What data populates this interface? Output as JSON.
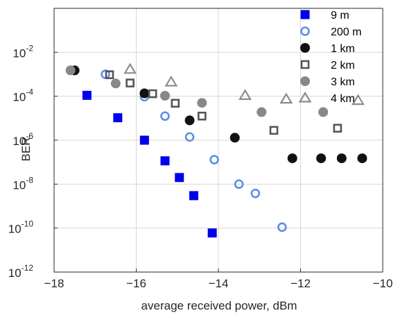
{
  "chart_data": {
    "type": "scatter",
    "xlabel": "average received power, dBm",
    "ylabel": "BER",
    "xlim": [
      -18,
      -10
    ],
    "ylim_exp": [
      -12,
      0
    ],
    "yscale": "log",
    "grid": true,
    "legend_position": "top-right",
    "x_ticks": [
      "-18",
      "-16",
      "-14",
      "-12",
      "-10"
    ],
    "y_ticks": [
      {
        "base": "10",
        "exp": "-2",
        "log": -2
      },
      {
        "base": "10",
        "exp": "-4",
        "log": -4
      },
      {
        "base": "10",
        "exp": "-6",
        "log": -6
      },
      {
        "base": "10",
        "exp": "-8",
        "log": -8
      },
      {
        "base": "10",
        "exp": "-10",
        "log": -10
      },
      {
        "base": "10",
        "exp": "-12",
        "log": -12
      }
    ],
    "series": [
      {
        "name": "9 m",
        "marker": "filled-square",
        "color": "#0000ee",
        "points": [
          [
            -17.2,
            0.00011
          ],
          [
            -16.45,
            1.05e-05
          ],
          [
            -15.8,
            1e-06
          ],
          [
            -15.3,
            1.15e-07
          ],
          [
            -14.95,
            2e-08
          ],
          [
            -14.6,
            3e-09
          ],
          [
            -14.15,
            6e-11
          ]
        ]
      },
      {
        "name": "200 m",
        "marker": "open-circle",
        "color": "#5c8ee6",
        "points": [
          [
            -16.75,
            0.001
          ],
          [
            -15.8,
            9.5e-05
          ],
          [
            -15.3,
            1.25e-05
          ],
          [
            -14.7,
            1.4e-06
          ],
          [
            -14.1,
            1.3e-07
          ],
          [
            -13.5,
            1e-08
          ],
          [
            -13.1,
            3.8e-09
          ],
          [
            -12.45,
            1.1e-10
          ]
        ]
      },
      {
        "name": "1 km",
        "marker": "filled-circle",
        "color": "#111111",
        "points": [
          [
            -17.5,
            0.0015
          ],
          [
            -15.8,
            0.000135
          ],
          [
            -14.7,
            8e-06
          ],
          [
            -13.6,
            1.3e-06
          ],
          [
            -12.2,
            1.5e-07
          ],
          [
            -11.5,
            1.5e-07
          ],
          [
            -11.0,
            1.5e-07
          ],
          [
            -10.5,
            1.5e-07
          ]
        ]
      },
      {
        "name": "2 km",
        "marker": "open-square",
        "color": "#555555",
        "points": [
          [
            -16.65,
            0.00095
          ],
          [
            -16.15,
            0.0004
          ],
          [
            -15.6,
            0.00013
          ],
          [
            -15.05,
            4.8e-05
          ],
          [
            -14.4,
            1.25e-05
          ],
          [
            -12.65,
            2.8e-06
          ],
          [
            -11.1,
            3.5e-06
          ]
        ]
      },
      {
        "name": "3 km",
        "marker": "filled-circle",
        "color": "#888888",
        "points": [
          [
            -17.6,
            0.0015
          ],
          [
            -16.5,
            0.00038
          ],
          [
            -15.3,
            0.000105
          ],
          [
            -14.4,
            5e-05
          ],
          [
            -12.95,
            1.9e-05
          ],
          [
            -11.45,
            1.9e-05
          ]
        ]
      },
      {
        "name": "4 km",
        "marker": "open-triangle",
        "color": "#8c8c8c",
        "points": [
          [
            -16.15,
            0.0017
          ],
          [
            -15.15,
            0.00045
          ],
          [
            -13.35,
            0.00011
          ],
          [
            -12.35,
            7.5e-05
          ],
          [
            -10.6,
            6.5e-05
          ]
        ]
      }
    ]
  }
}
